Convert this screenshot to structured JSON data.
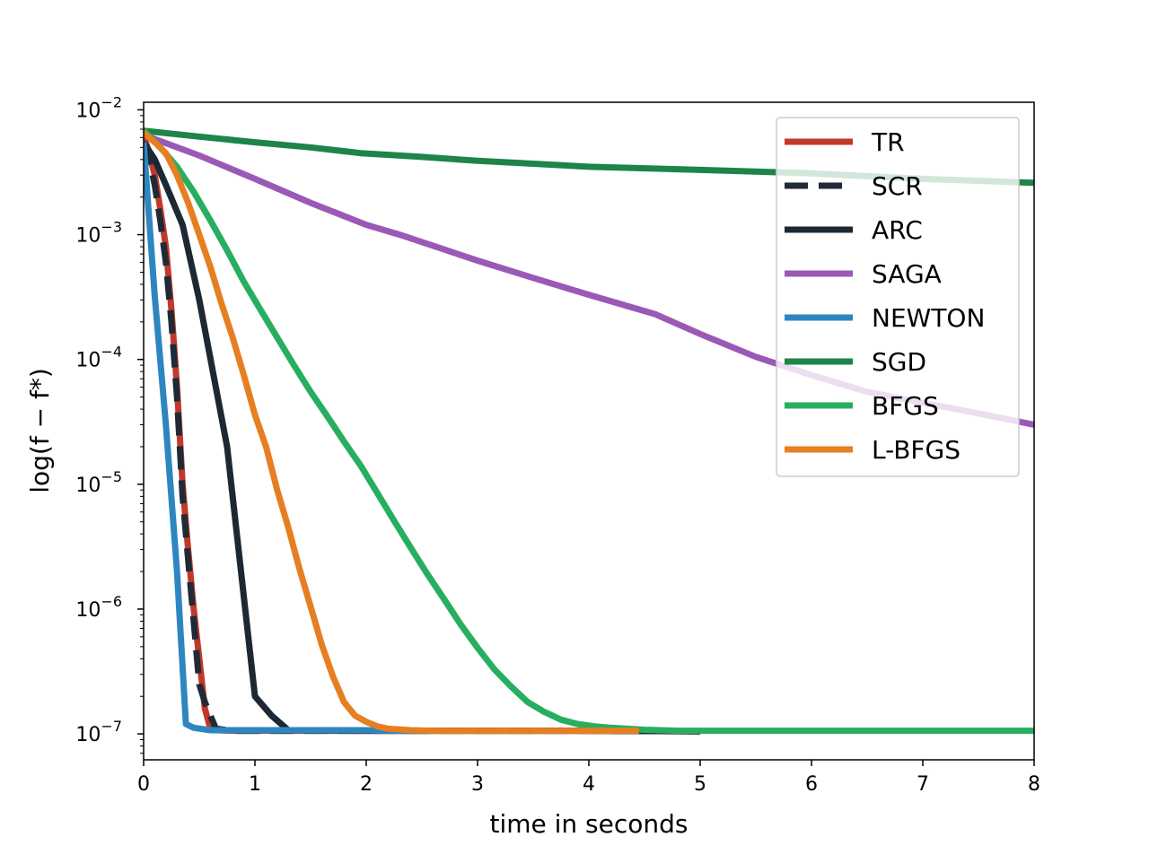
{
  "chart_data": {
    "type": "line",
    "title": "",
    "xlabel": "time in seconds",
    "ylabel": "log(f − f*)",
    "yscale": "log",
    "xlim": [
      0,
      8
    ],
    "ylim": [
      6.2e-08,
      0.0115
    ],
    "xticks": [
      0,
      1,
      2,
      3,
      4,
      5,
      6,
      7,
      8
    ],
    "xtick_labels": [
      "0",
      "1",
      "2",
      "3",
      "4",
      "5",
      "6",
      "7",
      "8"
    ],
    "yticks": [
      0.01,
      0.001,
      0.0001,
      1e-05,
      1e-06,
      1e-07
    ],
    "ytick_base": "10",
    "ytick_exponents": [
      "−2",
      "−3",
      "−4",
      "−5",
      "−6",
      "−7"
    ],
    "grid": false,
    "legend_position": "top-right",
    "series": [
      {
        "name": "TR",
        "color": "#c0392b",
        "dash": "solid",
        "x": [
          0.0,
          0.05,
          0.1,
          0.15,
          0.2,
          0.25,
          0.3,
          0.35,
          0.4,
          0.45,
          0.5,
          0.55,
          0.6,
          0.65,
          0.8,
          1.0,
          2.0,
          3.0,
          4.0,
          5.0
        ],
        "y": [
          0.0063,
          0.0045,
          0.003,
          0.0016,
          0.0008,
          0.00025,
          6e-05,
          1e-05,
          3e-06,
          1e-06,
          4e-07,
          1.6e-07,
          1.1e-07,
          1.07e-07,
          1.06e-07,
          1.06e-07,
          1.06e-07,
          1.06e-07,
          1.06e-07,
          1.05e-07
        ]
      },
      {
        "name": "SCR",
        "color": "#1f2a36",
        "dash": "dashed",
        "x": [
          0.0,
          0.05,
          0.1,
          0.15,
          0.2,
          0.25,
          0.3,
          0.35,
          0.4,
          0.45,
          0.5,
          0.55,
          0.6,
          0.65,
          0.8,
          1.0,
          2.0,
          3.0,
          4.0,
          5.0
        ],
        "y": [
          0.0055,
          0.004,
          0.0025,
          0.0013,
          0.0006,
          0.0002,
          5e-05,
          8e-06,
          2.5e-06,
          8e-07,
          2.5e-07,
          1.8e-07,
          1.4e-07,
          1.1e-07,
          1.06e-07,
          1.06e-07,
          1.06e-07,
          1.06e-07,
          1.06e-07,
          1.05e-07
        ]
      },
      {
        "name": "ARC",
        "color": "#1c2833",
        "dash": "solid",
        "x": [
          0.0,
          0.1,
          0.2,
          0.35,
          0.5,
          0.75,
          1.0,
          1.15,
          1.3,
          2.0,
          3.0,
          4.0,
          5.0
        ],
        "y": [
          0.0055,
          0.004,
          0.0025,
          0.0012,
          0.0003,
          2e-05,
          2e-07,
          1.4e-07,
          1.07e-07,
          1.06e-07,
          1.06e-07,
          1.06e-07,
          1.05e-07
        ]
      },
      {
        "name": "SAGA",
        "color": "#9b59b6",
        "dash": "solid",
        "x": [
          0.0,
          0.5,
          1.0,
          1.5,
          2.0,
          2.3,
          3.0,
          3.5,
          4.0,
          4.6,
          5.0,
          5.5,
          6.0,
          6.5,
          7.0,
          7.5,
          8.0
        ],
        "y": [
          0.0063,
          0.0043,
          0.0028,
          0.0018,
          0.0012,
          0.001,
          0.00062,
          0.00045,
          0.00033,
          0.00023,
          0.00016,
          0.000105,
          7.5e-05,
          5.5e-05,
          4.5e-05,
          3.7e-05,
          3e-05
        ]
      },
      {
        "name": "NEWTON",
        "color": "#2e86c1",
        "dash": "solid",
        "x": [
          0.0,
          0.1,
          0.2,
          0.3,
          0.38,
          0.45,
          0.6,
          0.8,
          1.0,
          1.5,
          2.0,
          2.2,
          2.5
        ],
        "y": [
          0.0055,
          0.00032,
          3e-05,
          2e-06,
          1.2e-07,
          1.12e-07,
          1.07e-07,
          1.07e-07,
          1.07e-07,
          1.07e-07,
          1.07e-07,
          1.06e-07,
          1.06e-07
        ]
      },
      {
        "name": "SGD",
        "color": "#1e8449",
        "dash": "solid",
        "x": [
          0.0,
          0.5,
          1.0,
          1.5,
          1.95,
          2.5,
          3.0,
          3.5,
          4.0,
          5.0,
          6.0,
          7.0,
          8.0
        ],
        "y": [
          0.0068,
          0.0061,
          0.0055,
          0.005,
          0.0045,
          0.0042,
          0.0039,
          0.0037,
          0.0035,
          0.0033,
          0.0031,
          0.0028,
          0.0026
        ]
      },
      {
        "name": "BFGS",
        "color": "#27ae60",
        "dash": "solid",
        "x": [
          0.0,
          0.15,
          0.3,
          0.45,
          0.6,
          0.75,
          0.9,
          1.05,
          1.2,
          1.35,
          1.5,
          1.65,
          1.8,
          1.95,
          2.1,
          2.25,
          2.4,
          2.55,
          2.7,
          2.85,
          3.0,
          3.15,
          3.3,
          3.45,
          3.6,
          3.75,
          3.9,
          4.05,
          4.2,
          4.35,
          4.5,
          4.65,
          4.8,
          5.0,
          5.5,
          6.0,
          7.0,
          8.0
        ],
        "y": [
          0.0068,
          0.005,
          0.0035,
          0.0022,
          0.0013,
          0.00075,
          0.00042,
          0.00025,
          0.00015,
          9.01e-05,
          5.51e-05,
          3.51e-05,
          2.2e-05,
          1.41e-05,
          8.5e-06,
          5.1e-06,
          3.1e-06,
          1.9e-06,
          1.2e-06,
          7.5e-07,
          4.9e-07,
          3.3e-07,
          2.4e-07,
          1.8e-07,
          1.5e-07,
          1.3e-07,
          1.2e-07,
          1.15e-07,
          1.12e-07,
          1.1e-07,
          1.08e-07,
          1.07e-07,
          1.06e-07,
          1.06e-07,
          1.06e-07,
          1.06e-07,
          1.06e-07,
          1.06e-07
        ]
      },
      {
        "name": "L-BFGS",
        "color": "#e67e22",
        "dash": "solid",
        "x": [
          0.0,
          0.1,
          0.2,
          0.3,
          0.4,
          0.5,
          0.6,
          0.7,
          0.8,
          0.9,
          1.0,
          1.1,
          1.2,
          1.3,
          1.4,
          1.5,
          1.6,
          1.7,
          1.8,
          1.9,
          2.0,
          2.1,
          2.2,
          2.4,
          2.6,
          3.0,
          3.5,
          4.0,
          4.45
        ],
        "y": [
          0.0066,
          0.0055,
          0.0045,
          0.003,
          0.0018,
          0.001,
          0.00055,
          0.00028,
          0.00015,
          7.5e-05,
          3.6e-05,
          2e-05,
          9e-06,
          4.5e-06,
          2.1e-06,
          1.05e-06,
          5.2e-07,
          2.9e-07,
          1.8e-07,
          1.4e-07,
          1.25e-07,
          1.15e-07,
          1.1e-07,
          1.07e-07,
          1.06e-07,
          1.06e-07,
          1.06e-07,
          1.06e-07,
          1.06e-07
        ]
      }
    ]
  }
}
